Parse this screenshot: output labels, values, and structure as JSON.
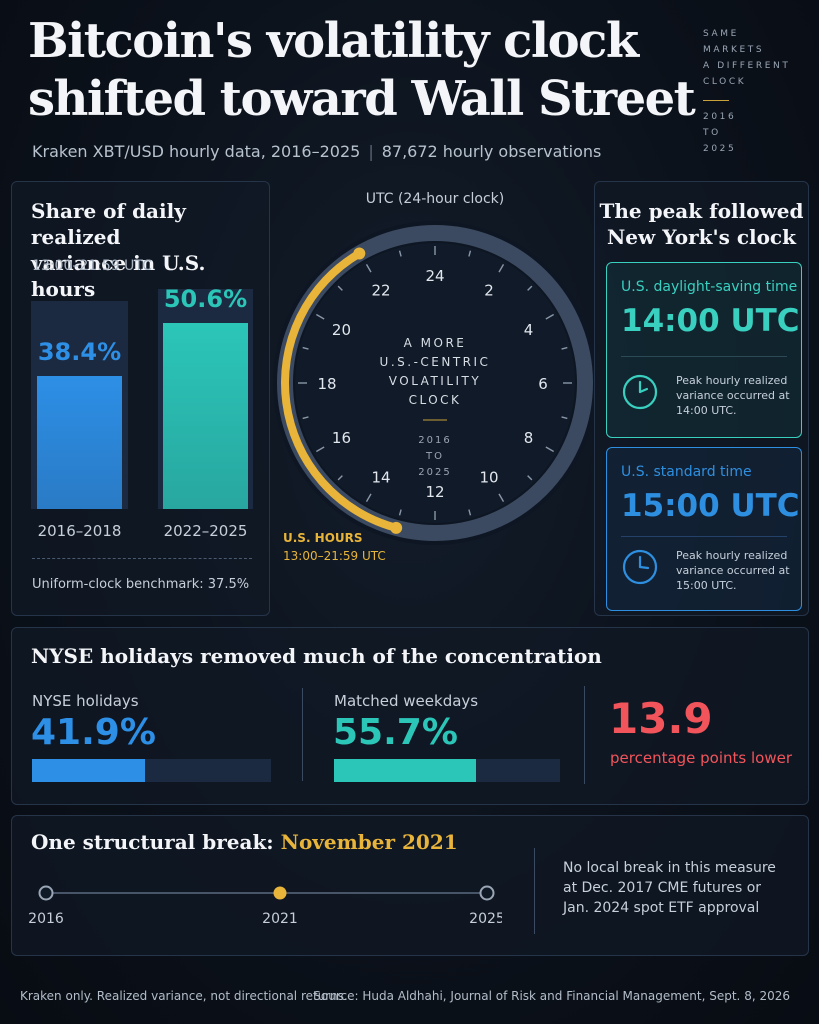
{
  "header": {
    "title_line1": "Bitcoin's volatility clock",
    "title_line2": "shifted toward Wall Street",
    "subtitle_left": "Kraken XBT/USD hourly data, 2016–2025",
    "subtitle_right": "87,672 hourly observations",
    "aside_lines": [
      "SAME",
      "MARKETS",
      "A DIFFERENT",
      "CLOCK"
    ],
    "aside_years": [
      "2016",
      "TO",
      "2025"
    ]
  },
  "share_panel": {
    "title_line1": "Share of daily realized",
    "title_line2": "variance in U.S. hours",
    "range": "13:00–21:59 UTC",
    "bars": [
      {
        "label": "2016–2018",
        "value": 38.4,
        "display": "38.4%",
        "color": "#2d8fe6"
      },
      {
        "label": "2022–2025",
        "value": 50.6,
        "display": "50.6%",
        "color": "#2bc6b8"
      }
    ],
    "benchmark_label": "Uniform-clock benchmark: 37.5%"
  },
  "clock": {
    "caption": "UTC (24-hour clock)",
    "hour_labels": [
      "24",
      "2",
      "4",
      "6",
      "8",
      "10",
      "12",
      "14",
      "16",
      "18",
      "20",
      "22"
    ],
    "center_lines": [
      "A MORE",
      "U.S.-CENTRIC",
      "VOLATILITY",
      "CLOCK"
    ],
    "center_years": [
      "2016",
      "TO",
      "2025"
    ],
    "arc_label": "U.S. HOURS",
    "arc_range": "13:00–21:59 UTC",
    "arc_start_hour": 13,
    "arc_end_hour": 21.98,
    "accent": "#e8b43a"
  },
  "peak_panel": {
    "title_line1": "The peak followed",
    "title_line2": "New York's clock",
    "cards": [
      {
        "title": "U.S. daylight-saving time",
        "time": "14:00 UTC",
        "note_line1": "Peak hourly realized",
        "note_line2": "variance occurred at",
        "note_line3": "14:00 UTC.",
        "color": "#39d0c0",
        "hand_hour": 2
      },
      {
        "title": "U.S. standard time",
        "time": "15:00 UTC",
        "note_line1": "Peak hourly realized",
        "note_line2": "variance occurred at",
        "note_line3": "15:00 UTC.",
        "color": "#2e8fe0",
        "hand_hour": 3
      }
    ]
  },
  "holidays_panel": {
    "title": "NYSE holidays removed much of the concentration",
    "metrics": [
      {
        "label": "NYSE holidays",
        "display": "41.9%",
        "value": 41.9,
        "color": "#2d8fe6"
      },
      {
        "label": "Matched weekdays",
        "display": "55.7%",
        "value": 55.7,
        "color": "#2bc6b8"
      }
    ],
    "difference": "13.9",
    "difference_note": "percentage points lower",
    "difference_color": "#f2545b"
  },
  "break_panel": {
    "title_prefix": "One structural break:",
    "title_highlight": "November 2021",
    "timeline": [
      {
        "label": "2016",
        "highlight": false
      },
      {
        "label": "2021",
        "highlight": true
      },
      {
        "label": "2025",
        "highlight": false
      }
    ],
    "note_line1": "No local break in this measure",
    "note_line2": "at Dec. 2017 CME futures or",
    "note_line3": "Jan. 2024 spot ETF approval"
  },
  "footer": {
    "left": "Kraken only. Realized variance, not directional returns.",
    "right": "Source: Huda Aldhahi, Journal of Risk and Financial Management, Sept. 8, 2026"
  }
}
